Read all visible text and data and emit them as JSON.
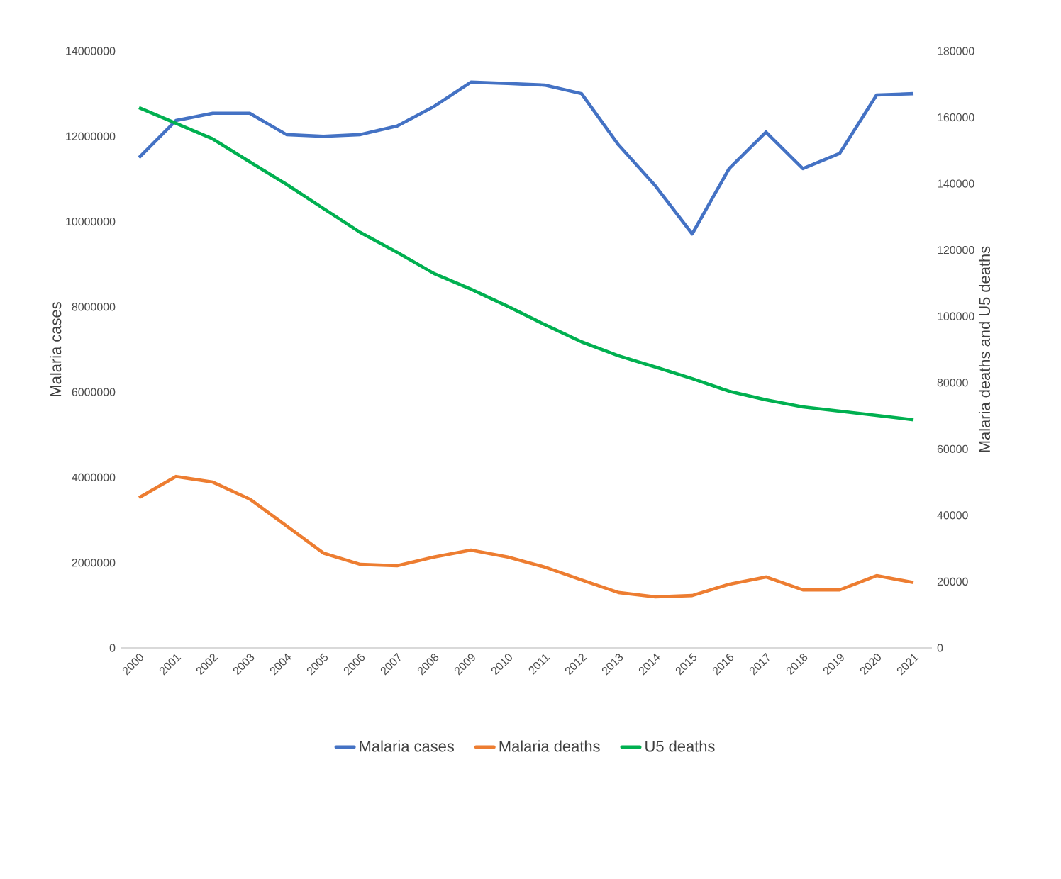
{
  "chart_data": {
    "type": "line",
    "ylabel": "Malaria cases",
    "y2label": "Malaria deaths and U5 deaths",
    "categories": [
      "2000",
      "2001",
      "2002",
      "2003",
      "2004",
      "2005",
      "2006",
      "2007",
      "2008",
      "2009",
      "2010",
      "2011",
      "2012",
      "2013",
      "2014",
      "2015",
      "2016",
      "2017",
      "2018",
      "2019",
      "2020",
      "2021"
    ],
    "series": [
      {
        "name": "Malaria cases",
        "color": "#4472c4",
        "axis": "y",
        "values": [
          11500000,
          12370000,
          12540000,
          12540000,
          12040000,
          12000000,
          12040000,
          12240000,
          12700000,
          13270000,
          13240000,
          13200000,
          13000000,
          11800000,
          10840000,
          9710000,
          11240000,
          12100000,
          11240000,
          11600000,
          12970000,
          13000000
        ]
      },
      {
        "name": "Malaria deaths",
        "color": "#ed7d31",
        "axis": "y2",
        "values": [
          45300,
          51700,
          50000,
          44900,
          36800,
          28600,
          25200,
          24800,
          27400,
          29500,
          27400,
          24400,
          20500,
          16700,
          15400,
          15800,
          19200,
          21400,
          17500,
          17500,
          21800,
          19700
        ]
      },
      {
        "name": "U5 deaths",
        "color": "#00b050",
        "axis": "y2",
        "values": [
          162900,
          158200,
          153500,
          146600,
          139800,
          132500,
          125300,
          119300,
          112900,
          108200,
          103000,
          97500,
          92300,
          88100,
          84700,
          81200,
          77400,
          74800,
          72700,
          71400,
          70100,
          68800
        ]
      }
    ],
    "ylim": [
      0,
      14000000
    ],
    "yticks": [
      0,
      2000000,
      4000000,
      6000000,
      8000000,
      10000000,
      12000000,
      14000000
    ],
    "y2lim": [
      0,
      180000
    ],
    "y2ticks": [
      0,
      20000,
      40000,
      60000,
      80000,
      100000,
      120000,
      140000,
      160000,
      180000
    ],
    "legend": "bottom",
    "line_style": "solid"
  }
}
